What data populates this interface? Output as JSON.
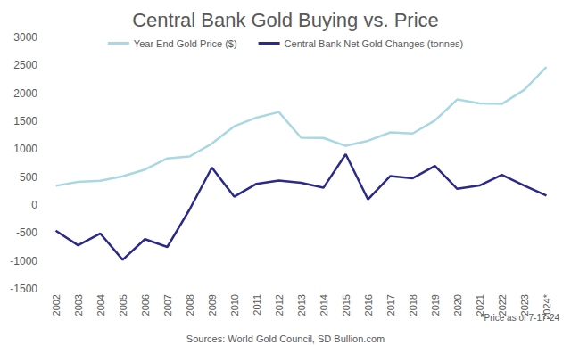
{
  "chart_data": {
    "type": "line",
    "title": "Central Bank Gold Buying vs. Price",
    "categories": [
      "2002",
      "2003",
      "2004",
      "2005",
      "2006",
      "2007",
      "2008",
      "2009",
      "2010",
      "2011",
      "2012",
      "2013",
      "2014",
      "2015",
      "2016",
      "2017",
      "2018",
      "2019",
      "2020",
      "2021",
      "2022",
      "2023",
      "2024*"
    ],
    "series": [
      {
        "name": "Year End Gold Price ($)",
        "color": "#a9d8e2",
        "values": [
          345,
          415,
          435,
          515,
          635,
          835,
          870,
          1100,
          1410,
          1565,
          1665,
          1205,
          1200,
          1060,
          1150,
          1300,
          1280,
          1515,
          1890,
          1820,
          1810,
          2060,
          2470
        ]
      },
      {
        "name": "Central Bank Net Gold Changes (tonnes)",
        "color": "#2b2a86",
        "values": [
          -460,
          -720,
          -510,
          -980,
          -610,
          -750,
          -80,
          670,
          150,
          380,
          440,
          400,
          310,
          910,
          100,
          520,
          480,
          700,
          290,
          350,
          540,
          350,
          170
        ]
      }
    ],
    "ylim": [
      -1500,
      3000
    ],
    "yticks": [
      -1500,
      -1000,
      -500,
      0,
      500,
      1000,
      1500,
      2000,
      2500,
      3000
    ],
    "grid": false,
    "legend": "top",
    "annotations": [
      "*Price as of 7-17-24",
      "Sources: World Gold Council, SD Bullion.com"
    ]
  }
}
